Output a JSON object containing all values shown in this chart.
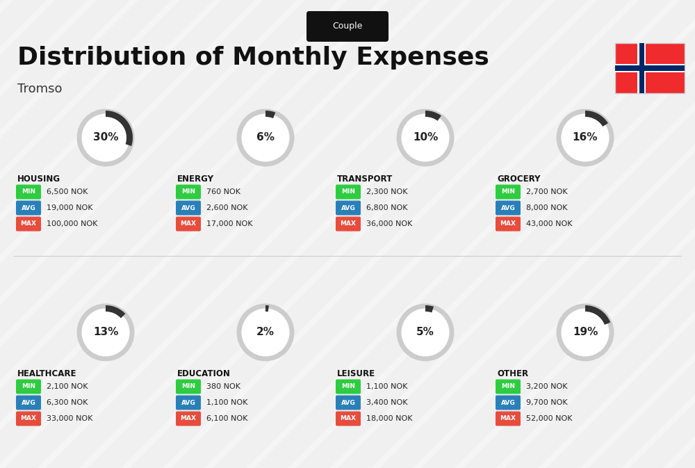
{
  "title": "Distribution of Monthly Expenses",
  "subtitle": "Couple",
  "location": "Tromso",
  "bg_color": "#f0f0f0",
  "categories": [
    {
      "name": "HOUSING",
      "pct": 30,
      "min": "6,500 NOK",
      "avg": "19,000 NOK",
      "max": "100,000 NOK",
      "row": 0,
      "col": 0
    },
    {
      "name": "ENERGY",
      "pct": 6,
      "min": "760 NOK",
      "avg": "2,600 NOK",
      "max": "17,000 NOK",
      "row": 0,
      "col": 1
    },
    {
      "name": "TRANSPORT",
      "pct": 10,
      "min": "2,300 NOK",
      "avg": "6,800 NOK",
      "max": "36,000 NOK",
      "row": 0,
      "col": 2
    },
    {
      "name": "GROCERY",
      "pct": 16,
      "min": "2,700 NOK",
      "avg": "8,000 NOK",
      "max": "43,000 NOK",
      "row": 0,
      "col": 3
    },
    {
      "name": "HEALTHCARE",
      "pct": 13,
      "min": "2,100 NOK",
      "avg": "6,300 NOK",
      "max": "33,000 NOK",
      "row": 1,
      "col": 0
    },
    {
      "name": "EDUCATION",
      "pct": 2,
      "min": "380 NOK",
      "avg": "1,100 NOK",
      "max": "6,100 NOK",
      "row": 1,
      "col": 1
    },
    {
      "name": "LEISURE",
      "pct": 5,
      "min": "1,100 NOK",
      "avg": "3,400 NOK",
      "max": "18,000 NOK",
      "row": 1,
      "col": 2
    },
    {
      "name": "OTHER",
      "pct": 19,
      "min": "3,200 NOK",
      "avg": "9,700 NOK",
      "max": "52,000 NOK",
      "row": 1,
      "col": 3
    }
  ],
  "min_color": "#2ecc40",
  "avg_color": "#2980b9",
  "max_color": "#e74c3c",
  "label_color": "#ffffff",
  "arc_color": "#333333",
  "arc_bg_color": "#cccccc",
  "cat_name_color": "#111111",
  "pct_color": "#222222"
}
